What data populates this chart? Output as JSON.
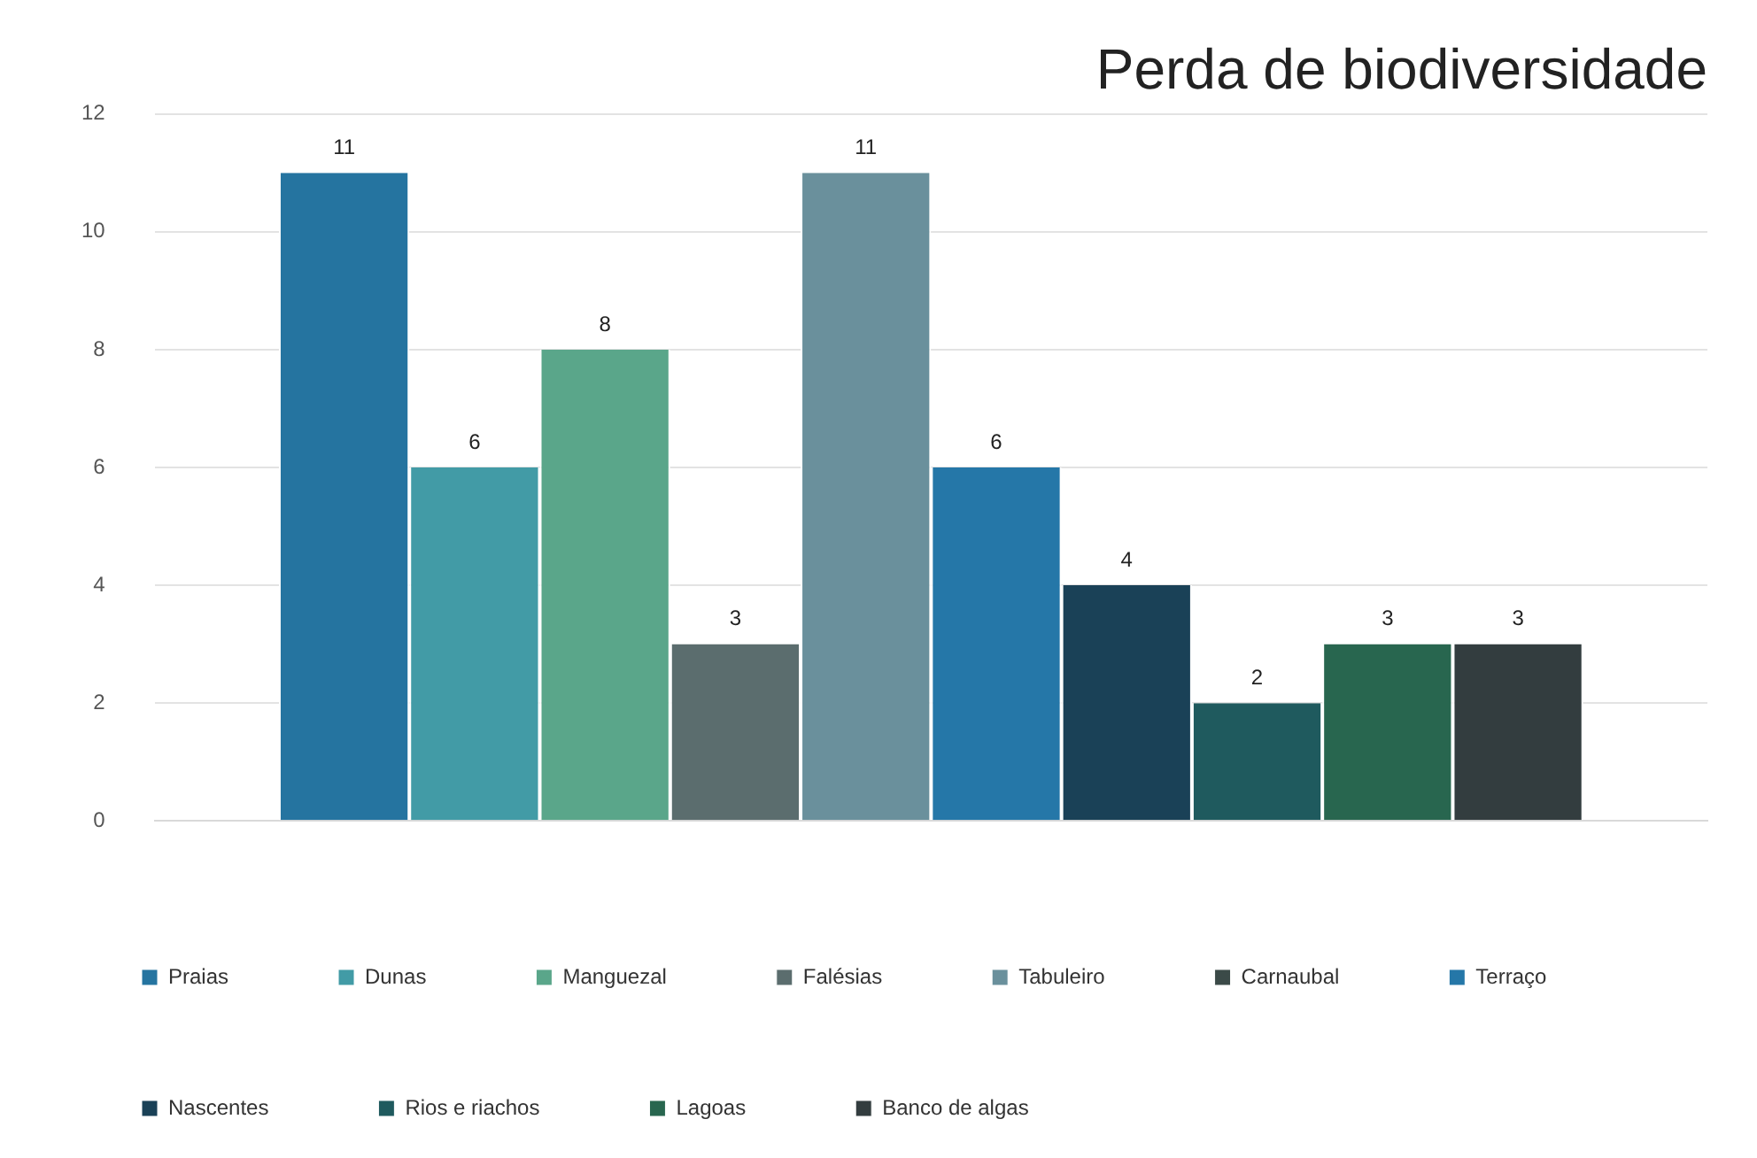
{
  "chart_data": {
    "type": "bar",
    "title": "Perda de biodiversidade",
    "categories": [
      null
    ],
    "series": [
      {
        "name": "Praias",
        "color": "#2574a0",
        "values": [
          11
        ]
      },
      {
        "name": "Dunas",
        "color": "#429ba6",
        "values": [
          6
        ]
      },
      {
        "name": "Manguezal",
        "color": "#5aa68a",
        "values": [
          8
        ]
      },
      {
        "name": "Falésias",
        "color": "#5b6d6e",
        "values": [
          3
        ]
      },
      {
        "name": "Tabuleiro",
        "color": "#6a909c",
        "values": [
          11
        ]
      },
      {
        "name": "Carnaubal",
        "color": "#3b4a48",
        "values": [
          null
        ]
      },
      {
        "name": "Terraço",
        "color": "#2577a8",
        "values": [
          6
        ]
      },
      {
        "name": "Nascentes",
        "color": "#1a4157",
        "values": [
          4
        ]
      },
      {
        "name": "Rios e riachos",
        "color": "#1f5a5e",
        "values": [
          2
        ]
      },
      {
        "name": "Lagoas",
        "color": "#28664f",
        "values": [
          3
        ]
      },
      {
        "name": "Banco de algas",
        "color": "#333d3f",
        "values": [
          3
        ]
      }
    ],
    "ylim": [
      0,
      12
    ],
    "yticks": [
      0,
      2,
      4,
      6,
      8,
      10,
      12
    ],
    "grid": "y",
    "legend": "bottom",
    "data_labels": true
  }
}
